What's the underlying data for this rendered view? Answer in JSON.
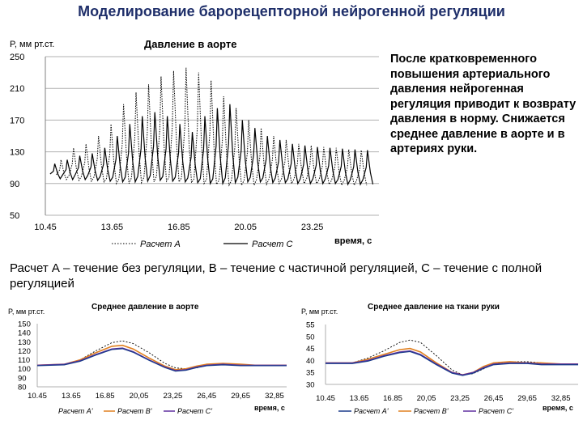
{
  "slide": {
    "title": "Моделирование барорецепторной нейрогенной регуляции",
    "note": "После кратковременного повышения артериального давления нейрогенная регуляция приводит к возврату давления в норму. Снижается  среднее давление в аорте и в артериях руки.",
    "caption": "Расчет А – течение без регуляции,  В – течение с частичной регуляцией, С – течение с полной регуляцией"
  },
  "colors": {
    "title": "#1f2f6a",
    "series_a": "#1a3a8a",
    "series_b": "#e08020",
    "series_c": "#6030a0"
  },
  "chart_data": [
    {
      "type": "line",
      "title": "Давление в аорте",
      "ylabel": "P, мм рт.ст.",
      "xlabel": "время, с",
      "ylim": [
        50,
        250
      ],
      "xlim": [
        10.45,
        26.45
      ],
      "yticks": [
        "50",
        "90",
        "130",
        "170",
        "210",
        "250"
      ],
      "xticks": [
        "10.45",
        "13.65",
        "16.85",
        "20.05",
        "23.25"
      ],
      "grid": "horizontal",
      "legend": "bottom",
      "series": [
        {
          "name": "Расчет А",
          "style": "dotted",
          "peaks_x": [
            11.2,
            11.8,
            12.4,
            13.0,
            13.6,
            14.2,
            14.8,
            15.4,
            16.0,
            16.6,
            17.2,
            17.8,
            18.4,
            19.0,
            19.6,
            20.2,
            20.8,
            21.4,
            22.0,
            22.6,
            23.2,
            23.8,
            24.4,
            25.0,
            25.6
          ],
          "peaks_y": [
            120,
            135,
            140,
            150,
            165,
            190,
            205,
            215,
            225,
            232,
            236,
            230,
            220,
            200,
            185,
            170,
            160,
            150,
            145,
            140,
            138,
            136,
            135,
            133,
            132
          ],
          "troughs_y": [
            95,
            94,
            93,
            92,
            90,
            90,
            91,
            92,
            93,
            92,
            91,
            90,
            89,
            88,
            88,
            88,
            89,
            90,
            90,
            90,
            90,
            89,
            88,
            88,
            88
          ]
        },
        {
          "name": "Расчет С",
          "style": "solid",
          "peaks_x": [
            10.9,
            11.5,
            12.1,
            12.7,
            13.3,
            13.9,
            14.5,
            15.1,
            15.7,
            16.3,
            16.9,
            17.5,
            18.1,
            18.7,
            19.3,
            19.9,
            20.5,
            21.1,
            21.7,
            22.3,
            22.9,
            23.5,
            24.1,
            24.7,
            25.3,
            25.9
          ],
          "peaks_y": [
            115,
            120,
            125,
            128,
            135,
            150,
            165,
            175,
            180,
            175,
            165,
            155,
            175,
            185,
            190,
            170,
            160,
            150,
            145,
            140,
            138,
            136,
            135,
            134,
            133,
            132
          ],
          "troughs_y": [
            96,
            95,
            95,
            94,
            93,
            92,
            92,
            93,
            94,
            93,
            92,
            91,
            90,
            90,
            91,
            92,
            92,
            91,
            91,
            90,
            90,
            90,
            90,
            89,
            89,
            89
          ]
        }
      ]
    },
    {
      "type": "line",
      "title": "Среднее давление в аорте",
      "ylabel": "P, мм рт.ст.",
      "xlabel": "время, с",
      "ylim": [
        80,
        150
      ],
      "xlim": [
        10.45,
        34.0
      ],
      "yticks": [
        "80",
        "90",
        "100",
        "110",
        "120",
        "130",
        "140",
        "150"
      ],
      "xticks": [
        "10.45",
        "13.65",
        "16.85",
        "20,05",
        "23,25",
        "26,45",
        "29,65",
        "32,85"
      ],
      "legend": "bottom",
      "series": [
        {
          "name": "Расчет А'",
          "x": [
            10.45,
            13.0,
            14.5,
            16.0,
            17.5,
            18.5,
            19.5,
            21.0,
            22.5,
            23.5,
            24.5,
            25.5,
            26.45,
            28.0,
            29.65,
            31.0,
            32.85,
            34.0
          ],
          "y": [
            104,
            105,
            110,
            120,
            129,
            131,
            128,
            118,
            106,
            101,
            100,
            101,
            104,
            106,
            105,
            104,
            104,
            104
          ]
        },
        {
          "name": "Расчет В'",
          "x": [
            10.45,
            13.0,
            14.5,
            16.0,
            17.5,
            18.5,
            19.5,
            21.0,
            22.5,
            23.5,
            24.5,
            25.5,
            26.45,
            28.0,
            29.65,
            31.0,
            32.85,
            34.0
          ],
          "y": [
            104,
            105,
            110,
            118,
            125,
            126,
            122,
            112,
            103,
            99,
            100,
            103,
            105,
            106,
            105,
            104,
            104,
            104
          ]
        },
        {
          "name": "Расчет С'",
          "x": [
            10.45,
            13.0,
            14.5,
            16.0,
            17.5,
            18.5,
            19.5,
            21.0,
            22.5,
            23.5,
            24.5,
            25.5,
            26.45,
            28.0,
            29.65,
            31.0,
            32.85,
            34.0
          ],
          "y": [
            104,
            105,
            109,
            116,
            122,
            123,
            119,
            110,
            102,
            98,
            99,
            102,
            104,
            105,
            104,
            104,
            104,
            104
          ]
        }
      ]
    },
    {
      "type": "line",
      "title": "Среднее давление на ткани руки",
      "ylabel": "P, мм рт.ст.",
      "xlabel": "время, с",
      "ylim": [
        30,
        55
      ],
      "xlim": [
        10.45,
        34.5
      ],
      "yticks": [
        "30",
        "35",
        "40",
        "45",
        "50",
        "55"
      ],
      "xticks": [
        "10.45",
        "13.65",
        "16.85",
        "20,05",
        "23,25",
        "26,45",
        "29,65",
        "32,85"
      ],
      "legend": "bottom",
      "series": [
        {
          "name": "Расчет А'",
          "x": [
            10.45,
            13.0,
            14.5,
            16.0,
            17.5,
            18.5,
            19.5,
            21.0,
            22.5,
            23.5,
            24.5,
            25.5,
            26.45,
            28.0,
            29.65,
            31.0,
            32.85,
            34.5
          ],
          "y": [
            39,
            39,
            41,
            44,
            47.5,
            48.5,
            47.5,
            42,
            36,
            34,
            34.5,
            36.5,
            38.5,
            39.5,
            39.5,
            39,
            38.5,
            38.5
          ]
        },
        {
          "name": "Расчет В'",
          "x": [
            10.45,
            13.0,
            14.5,
            16.0,
            17.5,
            18.5,
            19.5,
            21.0,
            22.5,
            23.5,
            24.5,
            25.5,
            26.45,
            28.0,
            29.65,
            31.0,
            32.85,
            34.5
          ],
          "y": [
            39,
            39,
            40.5,
            42.5,
            44.5,
            45,
            43.5,
            39,
            35,
            34,
            35,
            37.5,
            39,
            39.5,
            39,
            39,
            38.5,
            38.5
          ]
        },
        {
          "name": "Расчет С'",
          "x": [
            10.45,
            13.0,
            14.5,
            16.0,
            17.5,
            18.5,
            19.5,
            21.0,
            22.5,
            23.5,
            24.5,
            25.5,
            26.45,
            28.0,
            29.65,
            31.0,
            32.85,
            34.5
          ],
          "y": [
            39,
            39,
            40,
            42,
            43.5,
            44,
            42.5,
            38.5,
            35,
            34,
            35,
            37,
            38.5,
            39,
            39,
            38.5,
            38.5,
            38.5
          ]
        }
      ]
    }
  ]
}
